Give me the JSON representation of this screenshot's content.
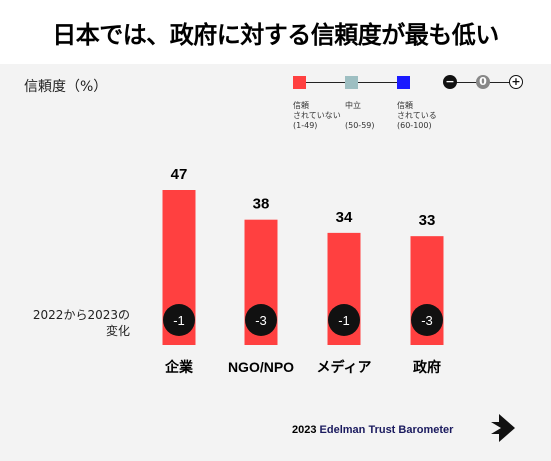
{
  "title": "日本では、政府に対する信頼度が最も低い",
  "ylabel": "信頼度（%）",
  "legend": [
    {
      "line1": "信頼",
      "line2": "されていない",
      "range": "(1-49)",
      "color": "#ff4040"
    },
    {
      "line1": "中立",
      "line2": "",
      "range": "(50-59)",
      "color": "#9ebfc2"
    },
    {
      "line1": "信頼",
      "line2": "されている",
      "range": "(60-100)",
      "color": "#1a1aff"
    }
  ],
  "scale": {
    "minus": "−",
    "zero": "0",
    "plus": "+"
  },
  "change_label": "2022から2023の変化",
  "chart_data": {
    "type": "bar",
    "categories": [
      "企業",
      "NGO/NPO",
      "メディア",
      "政府"
    ],
    "values": [
      47,
      38,
      34,
      33
    ],
    "changes": [
      "-1",
      "-3",
      "-1",
      "-3"
    ],
    "title": "日本では、政府に対する信頼度が最も低い",
    "ylabel": "信頼度（%）",
    "ylim": [
      0,
      47
    ],
    "grid": false,
    "bar_color": "#ff4040"
  },
  "brand": {
    "year": "2023",
    "name": "Edelman Trust Barometer"
  }
}
